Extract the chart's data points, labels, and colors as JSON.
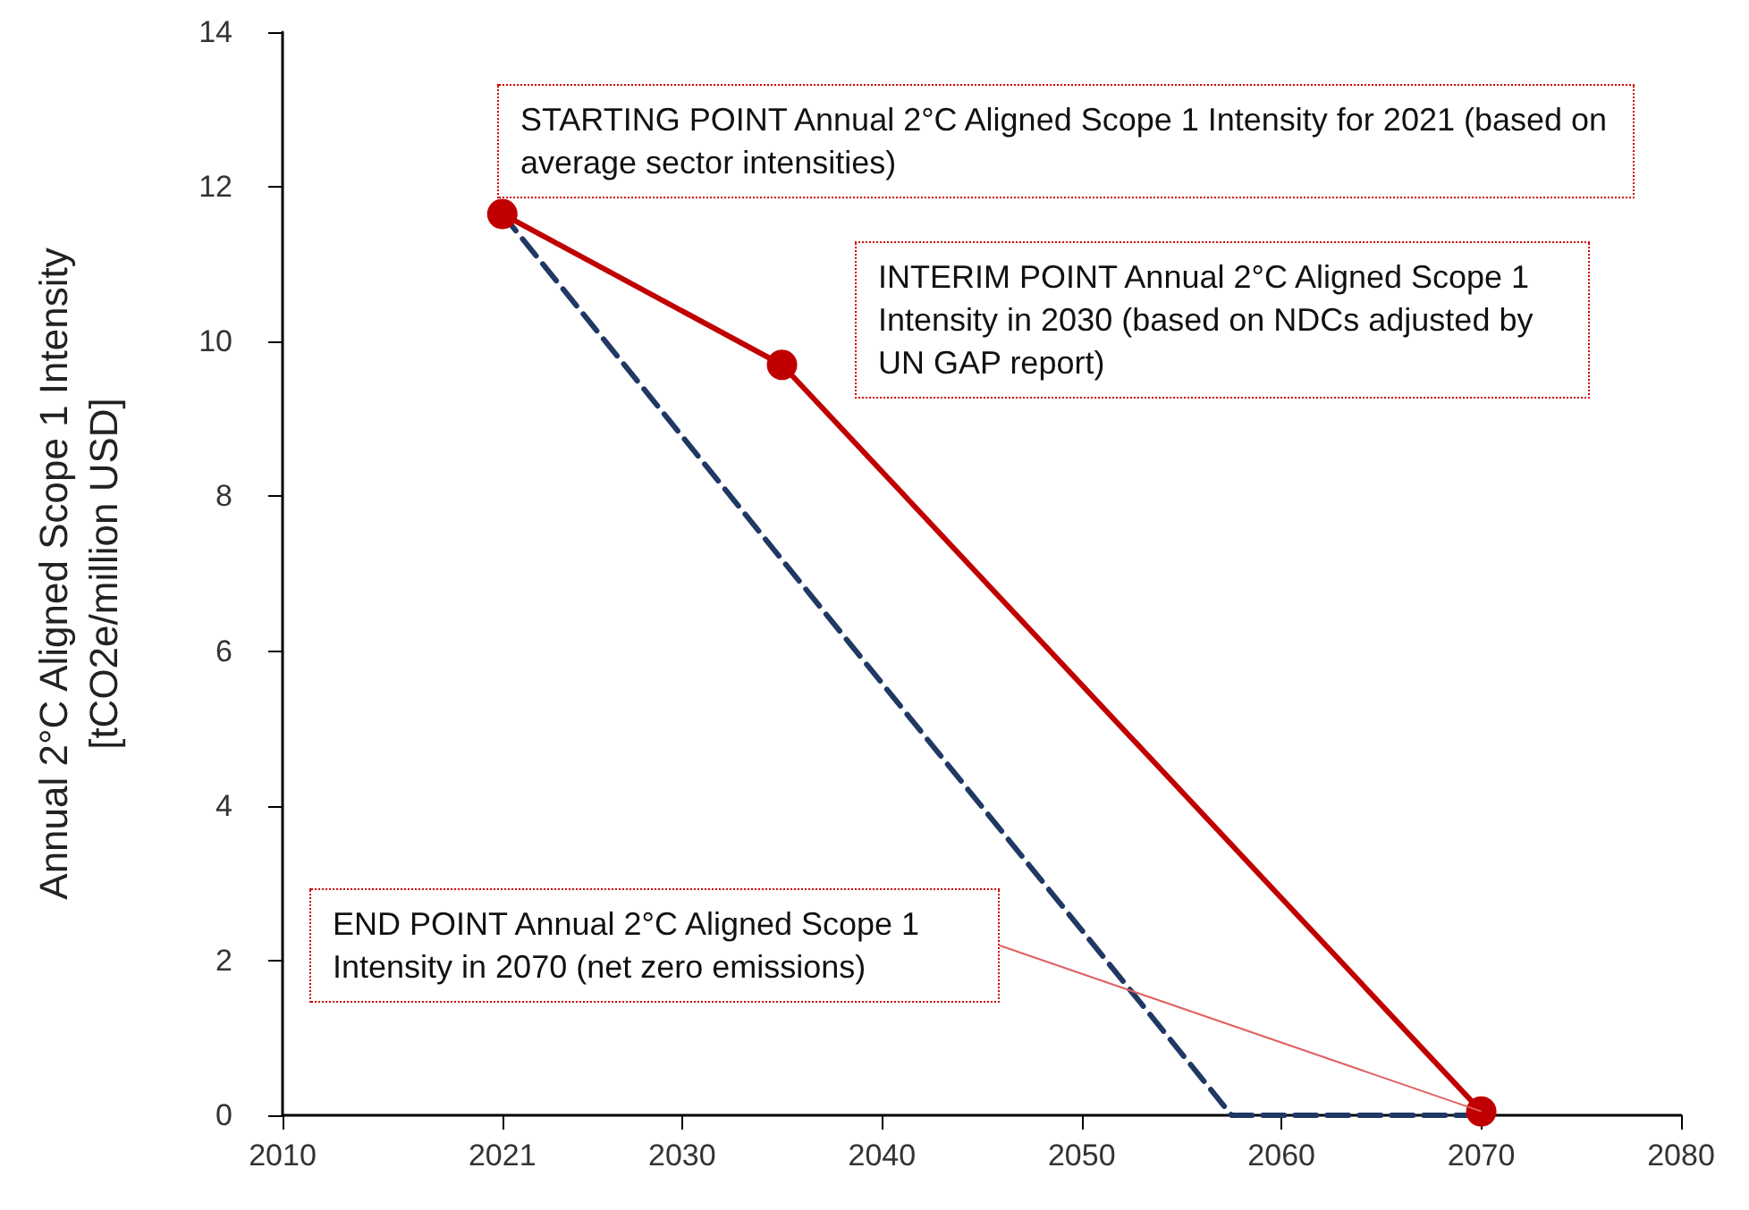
{
  "chart_data": {
    "type": "line",
    "ylabel": "Annual 2°C Aligned Scope 1 Intensity\n[tCO2e/million USD]",
    "xlim": [
      2010,
      2080
    ],
    "xticks": [
      2010,
      2021,
      2030,
      2040,
      2050,
      2060,
      2070,
      2080
    ],
    "ylim": [
      0,
      14
    ],
    "yticks": [
      0,
      2,
      4,
      6,
      8,
      10,
      12,
      14
    ],
    "grid": false,
    "series": [
      {
        "color": "#c00000",
        "x": [
          2021,
          2035,
          2070
        ],
        "values": [
          11.65,
          9.7,
          0.05
        ],
        "marker": "circle",
        "line_style": "solid"
      },
      {
        "color": "#1f3864",
        "x": [
          2021,
          2057.5,
          2070
        ],
        "values": [
          11.65,
          0,
          0
        ],
        "marker": "none",
        "line_style": "dashed"
      }
    ],
    "annotations": [
      "STARTING POINT Annual 2°C Aligned Scope 1 Intensity for 2021 (based on average sector intensities)",
      "INTERIM POINT Annual 2°C Aligned Scope 1 Intensity in 2030 (based on NDCs adjusted by UN GAP report)",
      "END POINT Annual 2°C Aligned Scope 1 Intensity in 2070 (net zero emissions)"
    ]
  }
}
